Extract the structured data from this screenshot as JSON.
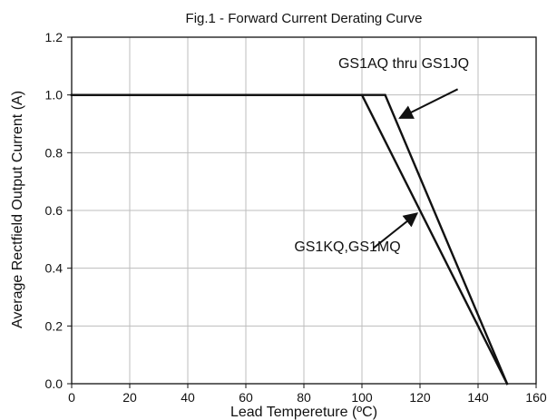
{
  "chart_data": {
    "type": "line",
    "title": "Fig.1 - Forward Current Derating Curve",
    "xlabel": "Lead Tempereture (ºC)",
    "ylabel": "Average Rectfield Output Current (A)",
    "xlim": [
      0,
      160
    ],
    "ylim": [
      0,
      1.2
    ],
    "x_ticks": [
      0,
      20,
      40,
      60,
      80,
      100,
      120,
      140,
      160
    ],
    "y_ticks": [
      0.0,
      0.2,
      0.4,
      0.6,
      0.8,
      1.0,
      1.2
    ],
    "x_tick_labels": [
      "0",
      "20",
      "40",
      "60",
      "80",
      "100",
      "120",
      "140",
      "160"
    ],
    "y_tick_labels": [
      "0.0",
      "0.2",
      "0.4",
      "0.6",
      "0.8",
      "1.0",
      "1.2"
    ],
    "grid": true,
    "series": [
      {
        "name": "GS1AQ thru GS1JQ",
        "x": [
          0,
          108,
          150
        ],
        "y": [
          1.0,
          1.0,
          0.0
        ]
      },
      {
        "name": "GS1KQ,GS1MQ",
        "x": [
          0,
          100,
          150
        ],
        "y": [
          1.0,
          1.0,
          0.0
        ]
      }
    ],
    "annotations": [
      {
        "text": "GS1AQ thru GS1JQ",
        "series_index": 0,
        "arrow_from": [
          133,
          1.02
        ],
        "arrow_to": [
          113,
          0.92
        ]
      },
      {
        "text": "GS1KQ,GS1MQ",
        "series_index": 1,
        "arrow_from": [
          104,
          0.47
        ],
        "arrow_to": [
          119,
          0.59
        ]
      }
    ],
    "colors": {
      "line": "#111111",
      "grid": "#bdbdbd",
      "frame": "#111111"
    }
  }
}
